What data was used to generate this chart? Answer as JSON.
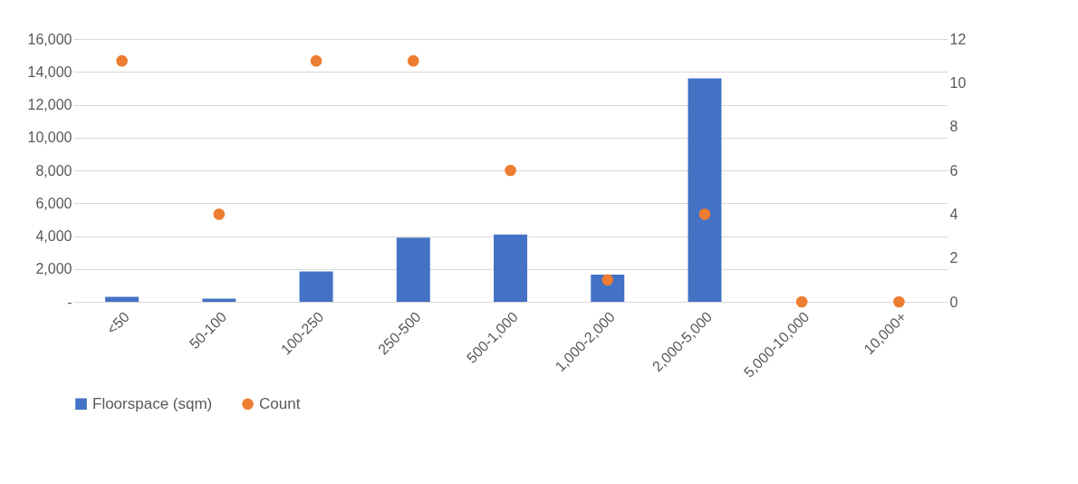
{
  "chart_data": {
    "type": "bar",
    "categories": [
      "<50",
      "50-100",
      "100-250",
      "250-500",
      "500-1,000",
      "1,000-2,000",
      "2,000-5,000",
      "5,000-10,000",
      "10,000+"
    ],
    "series": [
      {
        "name": "Floorspace (sqm)",
        "color": "#4472c4",
        "values": [
          300,
          200,
          1850,
          3900,
          4100,
          1650,
          13600,
          0,
          0
        ]
      },
      {
        "name": "Count",
        "type": "scatter",
        "axis": "y2",
        "color": "#ed7d31",
        "marker": "circle",
        "values": [
          11,
          4,
          11,
          11,
          6,
          1,
          4,
          0,
          0
        ]
      }
    ],
    "ylim": [
      0,
      16000
    ],
    "yticks": [
      {
        "value": 0,
        "label": "-"
      },
      {
        "value": 2000,
        "label": "2,000"
      },
      {
        "value": 4000,
        "label": "4,000"
      },
      {
        "value": 6000,
        "label": "6,000"
      },
      {
        "value": 8000,
        "label": "8,000"
      },
      {
        "value": 10000,
        "label": "10,000"
      },
      {
        "value": 12000,
        "label": "12,000"
      },
      {
        "value": 14000,
        "label": "14,000"
      },
      {
        "value": 16000,
        "label": "16,000"
      }
    ],
    "y2lim": [
      0,
      12
    ],
    "y2ticks": [
      0,
      2,
      4,
      6,
      8,
      10,
      12
    ],
    "grid": "y",
    "legend": "bottom"
  }
}
